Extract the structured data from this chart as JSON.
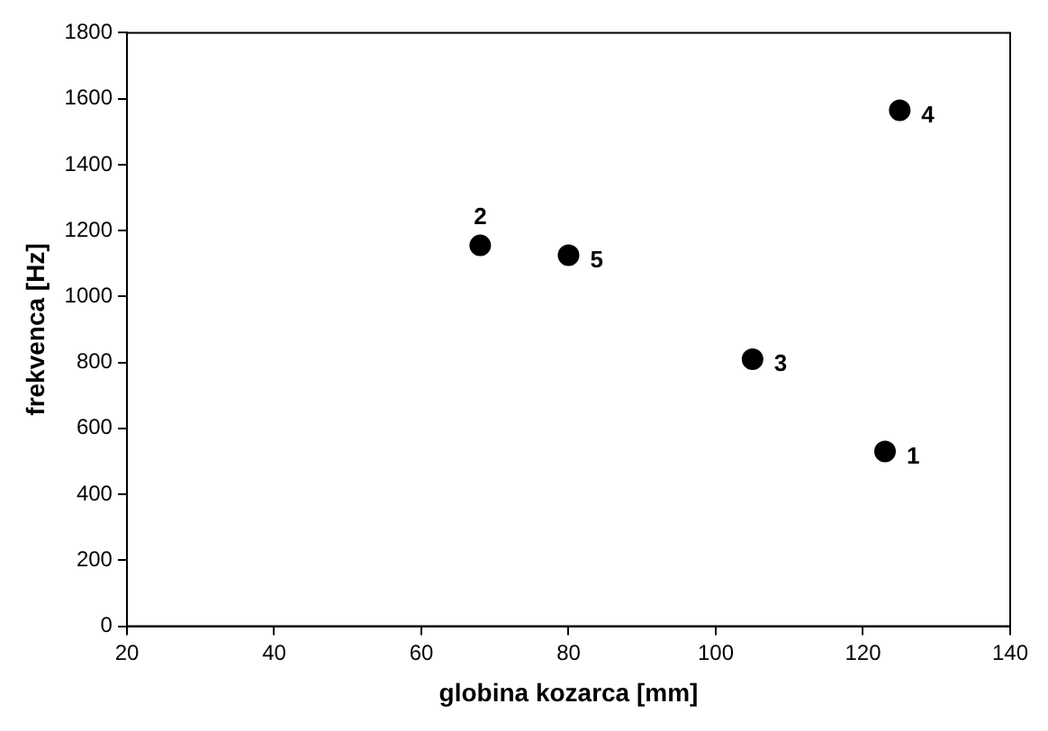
{
  "chart_data": {
    "type": "scatter",
    "xlabel": "globina kozarca [mm]",
    "ylabel": "frekvenca [Hz]",
    "x": [
      123,
      68,
      105,
      125,
      80
    ],
    "series": [
      {
        "color": "#000000",
        "values": [
          530,
          1155,
          810,
          1565,
          1125
        ]
      }
    ],
    "xlim": [
      20,
      140
    ],
    "xticks": [
      20,
      40,
      60,
      80,
      100,
      120,
      140
    ],
    "ylim": [
      0,
      1800
    ],
    "yticks": [
      0,
      200,
      400,
      600,
      800,
      1000,
      1200,
      1400,
      1600,
      1800
    ],
    "grid": false,
    "legend": false,
    "marker": "circle",
    "annotations": [
      {
        "text": "1",
        "x": 123,
        "y": 530
      },
      {
        "text": "2",
        "x": 68,
        "y": 1155
      },
      {
        "text": "3",
        "x": 105,
        "y": 810
      },
      {
        "text": "4",
        "x": 125,
        "y": 1565
      },
      {
        "text": "5",
        "x": 80,
        "y": 1125
      }
    ]
  }
}
